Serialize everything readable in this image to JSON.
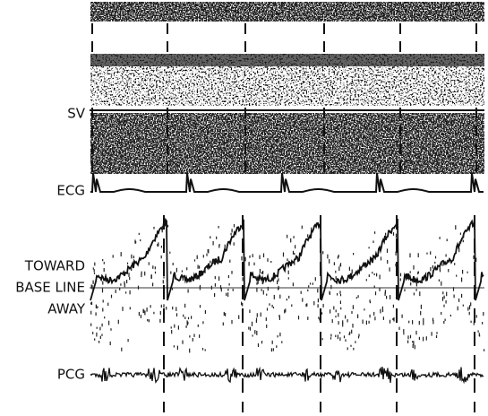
{
  "labels": {
    "sv": "SV",
    "ecg": "ECG",
    "toward": "TOWARD",
    "baseline": "BASE LINE",
    "away": "AWAY",
    "pcg": "PCG"
  }
}
